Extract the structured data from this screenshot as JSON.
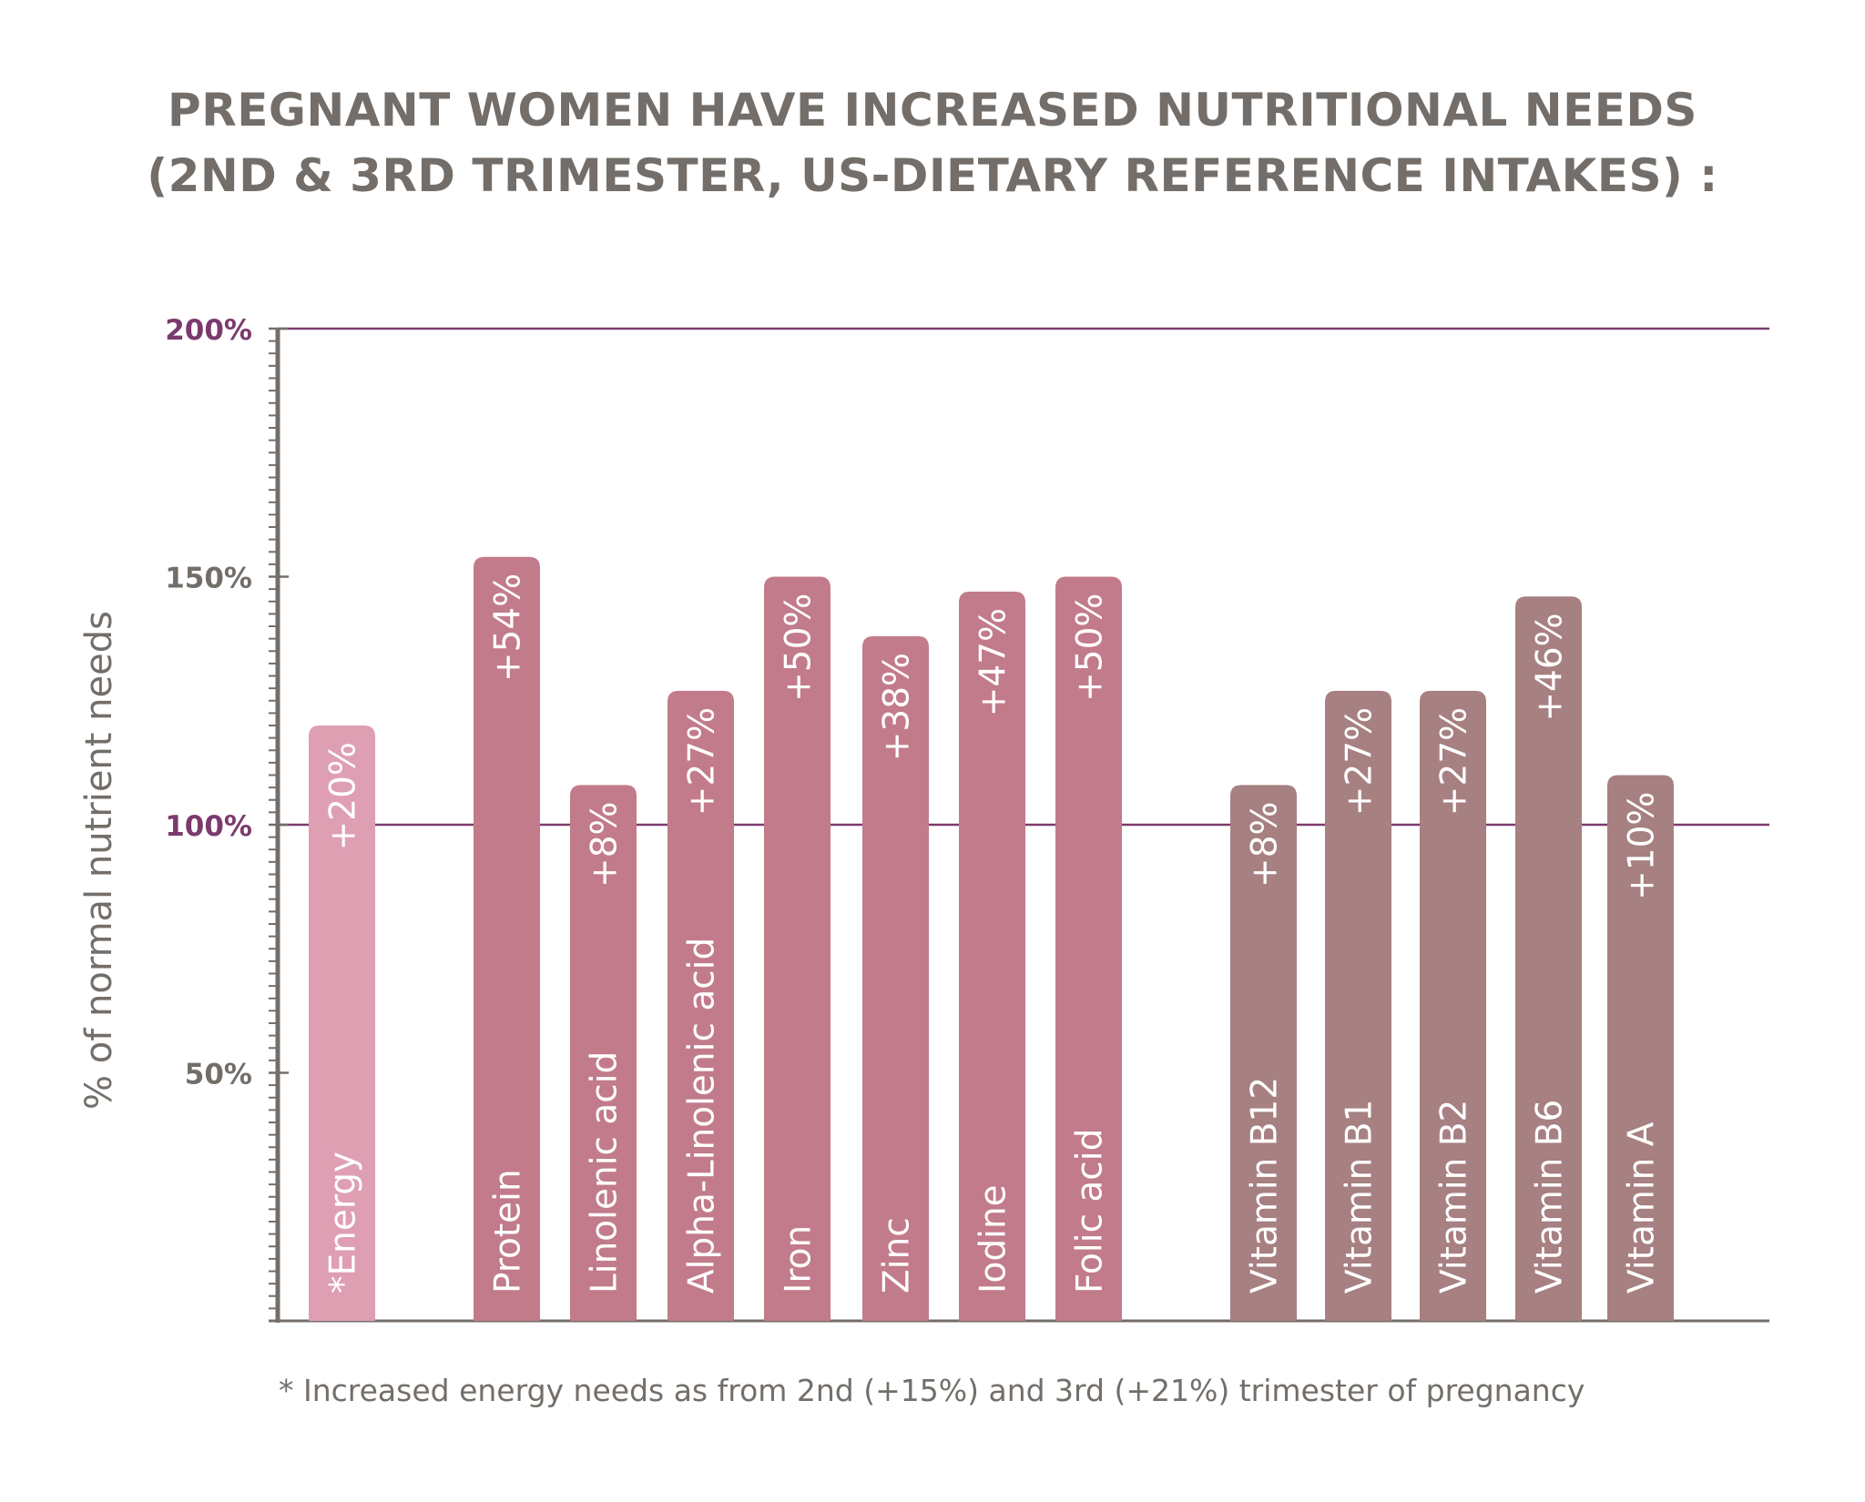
{
  "chart_data": {
    "type": "bar",
    "title": [
      "PREGNANT WOMEN HAVE INCREASED NUTRITIONAL NEEDS",
      "(2ND & 3RD TRIMESTER, US-DIETARY REFERENCE INTAKES) :"
    ],
    "ylabel": "% of normal nutrient needs",
    "xlabel": "",
    "ylim": [
      0,
      200
    ],
    "yticks": [
      {
        "value": 200,
        "label": "200%",
        "highlight": true
      },
      {
        "value": 150,
        "label": "150%",
        "highlight": false
      },
      {
        "value": 100,
        "label": "100%",
        "highlight": true
      },
      {
        "value": 50,
        "label": "50%",
        "highlight": false
      }
    ],
    "reference_lines": [
      100,
      200
    ],
    "categories": [
      "*Energy",
      "Protein",
      "Linolenic acid",
      "Alpha-Linolenic acid",
      "Iron",
      "Zinc",
      "Iodine",
      "Folic acid",
      "Vitamin B12",
      "Vitamin B1",
      "Vitamin B2",
      "Vitamin B6",
      "Vitamin A"
    ],
    "values": [
      120,
      154,
      108,
      127,
      150,
      138,
      147,
      150,
      108,
      127,
      127,
      146,
      110
    ],
    "data_labels": [
      "+20%",
      "+54%",
      "+8%",
      "+27%",
      "+50%",
      "+38%",
      "+47%",
      "+50%",
      "+8%",
      "+27%",
      "+27%",
      "+46%",
      "+10%"
    ],
    "groups": [
      "energy",
      "nutrient",
      "nutrient",
      "nutrient",
      "nutrient",
      "nutrient",
      "nutrient",
      "nutrient",
      "vitamin",
      "vitamin",
      "vitamin",
      "vitamin",
      "vitamin"
    ],
    "grid": false,
    "footnote": "* Increased energy needs as from 2nd  (+15%) and 3rd (+21%) trimester of pregnancy"
  },
  "colors": {
    "energy": "#de9fb3",
    "nutrient": "#c27b8b",
    "vitamin": "#a78082",
    "axis": "#736e69",
    "highlight": "#7b3a6e",
    "text": "#736e69"
  }
}
